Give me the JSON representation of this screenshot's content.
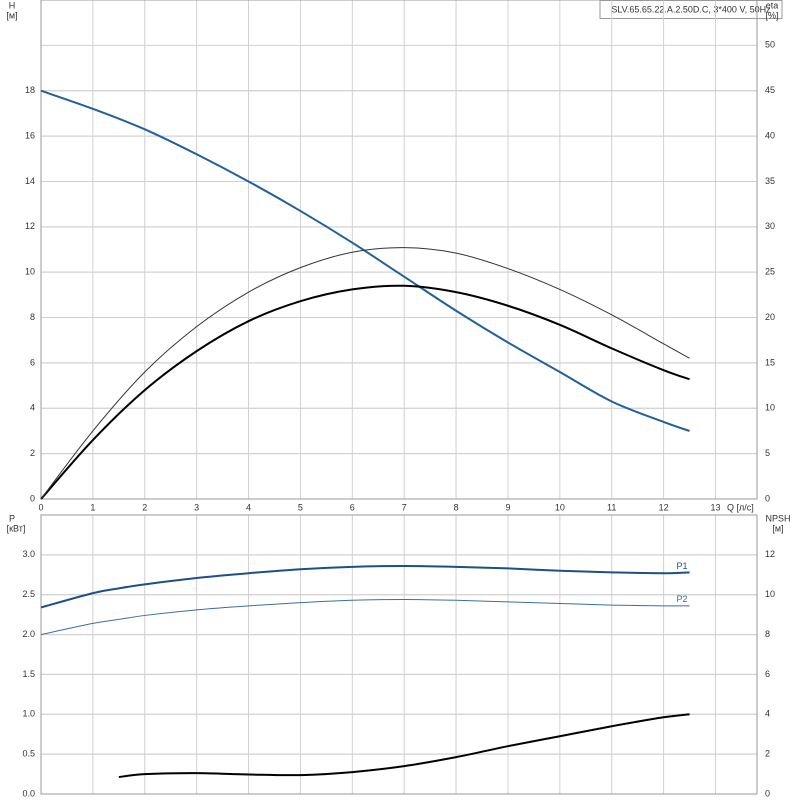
{
  "chart_data": [
    {
      "type": "line",
      "title": "SLV.65.65.22.A.2.50D.C, 3*400 V, 50Hz",
      "x_label": "Q [л/с]",
      "y_label": "H",
      "y_unit": "[м]",
      "y2_label": "eta",
      "y2_unit": "[%]",
      "x": [
        0,
        1,
        2,
        3,
        4,
        5,
        6,
        7,
        8,
        9,
        10,
        11,
        12,
        12.5
      ],
      "xlim": [
        0,
        13.8
      ],
      "xticks": [
        0,
        1,
        2,
        3,
        4,
        5,
        6,
        7,
        8,
        9,
        10,
        11,
        12,
        13
      ],
      "ylim": [
        0,
        22
      ],
      "yticks": [
        0,
        2,
        4,
        6,
        8,
        10,
        12,
        14,
        16,
        18
      ],
      "y2lim": [
        0,
        55
      ],
      "y2ticks": [
        0,
        5,
        10,
        15,
        20,
        25,
        30,
        35,
        40,
        45,
        50
      ],
      "grid": true,
      "series": [
        {
          "color": "#21609c",
          "width": 2,
          "values": [
            18,
            17.2,
            16.3,
            15.2,
            14.0,
            12.7,
            11.3,
            9.8,
            8.3,
            6.9,
            5.6,
            4.3,
            3.4,
            3.0
          ]
        },
        {
          "color": "#000000",
          "width": 2,
          "axis": "y2",
          "values": [
            0,
            6.5,
            12,
            16.3,
            19.6,
            21.8,
            23.1,
            23.5,
            22.8,
            21.3,
            19.2,
            16.6,
            14.2,
            13.2
          ]
        },
        {
          "color": "#333333",
          "width": 1,
          "axis": "y2",
          "values": [
            0,
            7.5,
            14,
            19,
            22.8,
            25.5,
            27.2,
            27.7,
            27.1,
            25.4,
            23.1,
            20.3,
            17.1,
            15.5
          ]
        }
      ]
    },
    {
      "type": "line",
      "y_label": "P",
      "y_unit": "[кВт]",
      "y2_label": "NPSH",
      "y2_unit": "[м]",
      "x": [
        0,
        1,
        1.5,
        2,
        3,
        4,
        5,
        6,
        7,
        8,
        9,
        10,
        11,
        12,
        12.5
      ],
      "xlim": [
        0,
        13.8
      ],
      "ylim": [
        0,
        3.5
      ],
      "yticks": [
        {
          "value": 0,
          "label": "0.0"
        },
        0.5,
        {
          "value": 1,
          "label": "1.0"
        },
        1.5,
        {
          "value": 2,
          "label": "2.0"
        },
        2.5,
        {
          "value": 3,
          "label": "3.0"
        }
      ],
      "y2lim": [
        0,
        14
      ],
      "y2ticks": [
        0,
        2,
        4,
        6,
        8,
        10,
        12
      ],
      "grid": true,
      "series": [
        {
          "name": "P1",
          "color": "#1d4f88",
          "width": 2,
          "values": [
            2.34,
            2.52,
            2.58,
            2.63,
            2.71,
            2.77,
            2.82,
            2.85,
            2.86,
            2.85,
            2.83,
            2.8,
            2.78,
            2.77,
            2.78
          ]
        },
        {
          "name": "P2",
          "color": "#3a6ea5",
          "width": 1,
          "values": [
            2.0,
            2.14,
            2.19,
            2.24,
            2.31,
            2.36,
            2.4,
            2.43,
            2.44,
            2.43,
            2.41,
            2.39,
            2.37,
            2.36,
            2.36
          ]
        },
        {
          "color": "#000000",
          "width": 2,
          "axis": "y2",
          "values": [
            null,
            null,
            0.85,
            1.0,
            1.05,
            0.98,
            0.95,
            1.1,
            1.4,
            1.85,
            2.4,
            2.9,
            3.4,
            3.85,
            4.0
          ]
        }
      ]
    }
  ]
}
